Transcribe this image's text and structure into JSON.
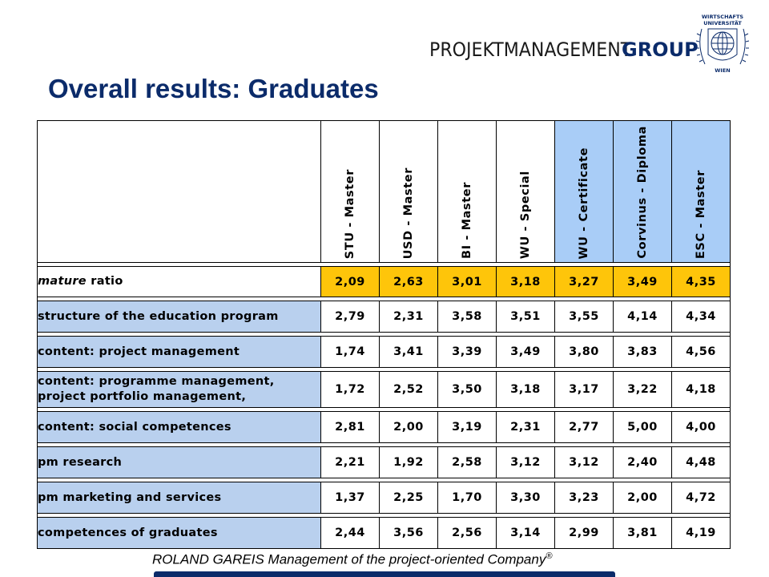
{
  "header": {
    "brand_light": "PROJEKTMANAGEMENT",
    "brand_bold": "GROUP",
    "logo_top_text": "WIRTSCHAFTS",
    "logo_top_text2": "UNIVERSITÄT",
    "logo_bottom_text": "WIEN"
  },
  "title": "Overall results: Graduates",
  "table": {
    "columns": [
      {
        "label": "STU - Master",
        "highlight": false
      },
      {
        "label": "USD - Master",
        "highlight": false
      },
      {
        "label": "BI - Master",
        "highlight": false
      },
      {
        "label": "WU - Special",
        "highlight": false
      },
      {
        "label": "WU - Certificate",
        "highlight": true
      },
      {
        "label": "Corvinus - Diploma",
        "highlight": true
      },
      {
        "label": "ESC - Master",
        "highlight": true
      }
    ],
    "mature_row": {
      "label_italic": "mature",
      "label_rest": " ratio",
      "values": [
        "2,09",
        "2,63",
        "3,01",
        "3,18",
        "3,27",
        "3,49",
        "4,35"
      ]
    },
    "rows": [
      {
        "label": "structure of the education program",
        "values": [
          "2,79",
          "2,31",
          "3,58",
          "3,51",
          "3,55",
          "4,14",
          "4,34"
        ]
      },
      {
        "label": "content: project management",
        "values": [
          "1,74",
          "3,41",
          "3,39",
          "3,49",
          "3,80",
          "3,83",
          "4,56"
        ]
      },
      {
        "label": "content: programme management,",
        "label2": "project portfolio management,",
        "values": [
          "1,72",
          "2,52",
          "3,50",
          "3,18",
          "3,17",
          "3,22",
          "4,18"
        ]
      },
      {
        "label": "content: social competences",
        "values": [
          "2,81",
          "2,00",
          "3,19",
          "2,31",
          "2,77",
          "5,00",
          "4,00"
        ]
      },
      {
        "label": "pm research",
        "values": [
          "2,21",
          "1,92",
          "2,58",
          "3,12",
          "3,12",
          "2,40",
          "4,48"
        ]
      },
      {
        "label": "pm marketing and services",
        "values": [
          "1,37",
          "2,25",
          "1,70",
          "3,30",
          "3,23",
          "2,00",
          "4,72"
        ]
      },
      {
        "label": "competences of graduates",
        "values": [
          "2,44",
          "3,56",
          "2,56",
          "3,14",
          "2,99",
          "3,81",
          "4,19"
        ]
      }
    ]
  },
  "footer": {
    "text": "ROLAND GAREIS Management of the project-oriented Company",
    "mark": "®"
  },
  "colors": {
    "title": "#0b2b6a",
    "label_bg": "#b9d0ee",
    "header_highlight": "#a9cdf7",
    "mature_bg": "#fec50a"
  }
}
